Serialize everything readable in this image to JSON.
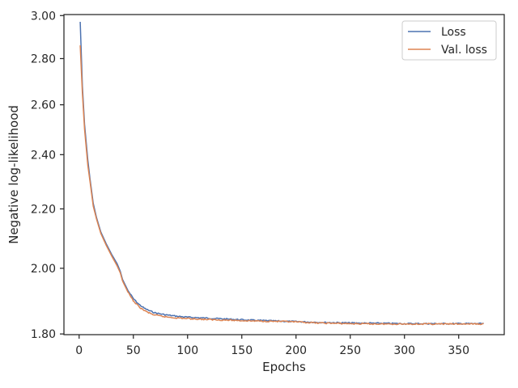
{
  "chart_data": {
    "type": "line",
    "title": "",
    "xlabel": "Epochs",
    "ylabel": "Negative log-likelihood",
    "xlim": [
      -14,
      392
    ],
    "ylim": [
      1.798,
      3.005
    ],
    "y_scale": "log",
    "grid": false,
    "legend_position": "top-right",
    "x_ticks": [
      0,
      50,
      100,
      150,
      200,
      250,
      300,
      350
    ],
    "y_ticks": [
      {
        "value": 1.8,
        "label": "1.80"
      },
      {
        "value": 2.0,
        "label": "2.00"
      },
      {
        "value": 2.2,
        "label": "2.20"
      },
      {
        "value": 2.4,
        "label": "2.40"
      },
      {
        "value": 2.6,
        "label": "2.60"
      },
      {
        "value": 2.8,
        "label": "2.80"
      },
      {
        "value": 3.0,
        "label": "3.00"
      }
    ],
    "series": [
      {
        "name": "Loss",
        "color": "#4c72b0",
        "points": [
          [
            1,
            2.97
          ],
          [
            3,
            2.68
          ],
          [
            5,
            2.52
          ],
          [
            8,
            2.38
          ],
          [
            10,
            2.31
          ],
          [
            13,
            2.22
          ],
          [
            16,
            2.17
          ],
          [
            20,
            2.12
          ],
          [
            25,
            2.08
          ],
          [
            30,
            2.045
          ],
          [
            35,
            2.015
          ],
          [
            38,
            1.99
          ],
          [
            40,
            1.965
          ],
          [
            45,
            1.93
          ],
          [
            50,
            1.905
          ],
          [
            55,
            1.888
          ],
          [
            60,
            1.876
          ],
          [
            65,
            1.868
          ],
          [
            70,
            1.862
          ],
          [
            80,
            1.856
          ],
          [
            90,
            1.852
          ],
          [
            100,
            1.849
          ],
          [
            120,
            1.846
          ],
          [
            140,
            1.843
          ],
          [
            160,
            1.84
          ],
          [
            180,
            1.838
          ],
          [
            200,
            1.836
          ],
          [
            220,
            1.834
          ],
          [
            250,
            1.832
          ],
          [
            280,
            1.831
          ],
          [
            300,
            1.83
          ],
          [
            330,
            1.83
          ],
          [
            350,
            1.83
          ],
          [
            373,
            1.83
          ]
        ]
      },
      {
        "name": "Val. loss",
        "color": "#dd8452",
        "points": [
          [
            1,
            2.86
          ],
          [
            3,
            2.65
          ],
          [
            5,
            2.5
          ],
          [
            8,
            2.36
          ],
          [
            10,
            2.3
          ],
          [
            13,
            2.21
          ],
          [
            16,
            2.165
          ],
          [
            20,
            2.115
          ],
          [
            25,
            2.075
          ],
          [
            30,
            2.04
          ],
          [
            35,
            2.008
          ],
          [
            38,
            1.985
          ],
          [
            40,
            1.96
          ],
          [
            45,
            1.925
          ],
          [
            50,
            1.898
          ],
          [
            55,
            1.881
          ],
          [
            60,
            1.869
          ],
          [
            65,
            1.861
          ],
          [
            70,
            1.855
          ],
          [
            80,
            1.85
          ],
          [
            90,
            1.847
          ],
          [
            100,
            1.845
          ],
          [
            120,
            1.842
          ],
          [
            140,
            1.84
          ],
          [
            160,
            1.838
          ],
          [
            180,
            1.837
          ],
          [
            200,
            1.835
          ],
          [
            220,
            1.832
          ],
          [
            250,
            1.83
          ],
          [
            280,
            1.829
          ],
          [
            300,
            1.829
          ],
          [
            330,
            1.829
          ],
          [
            350,
            1.829
          ],
          [
            373,
            1.829
          ]
        ]
      }
    ]
  }
}
